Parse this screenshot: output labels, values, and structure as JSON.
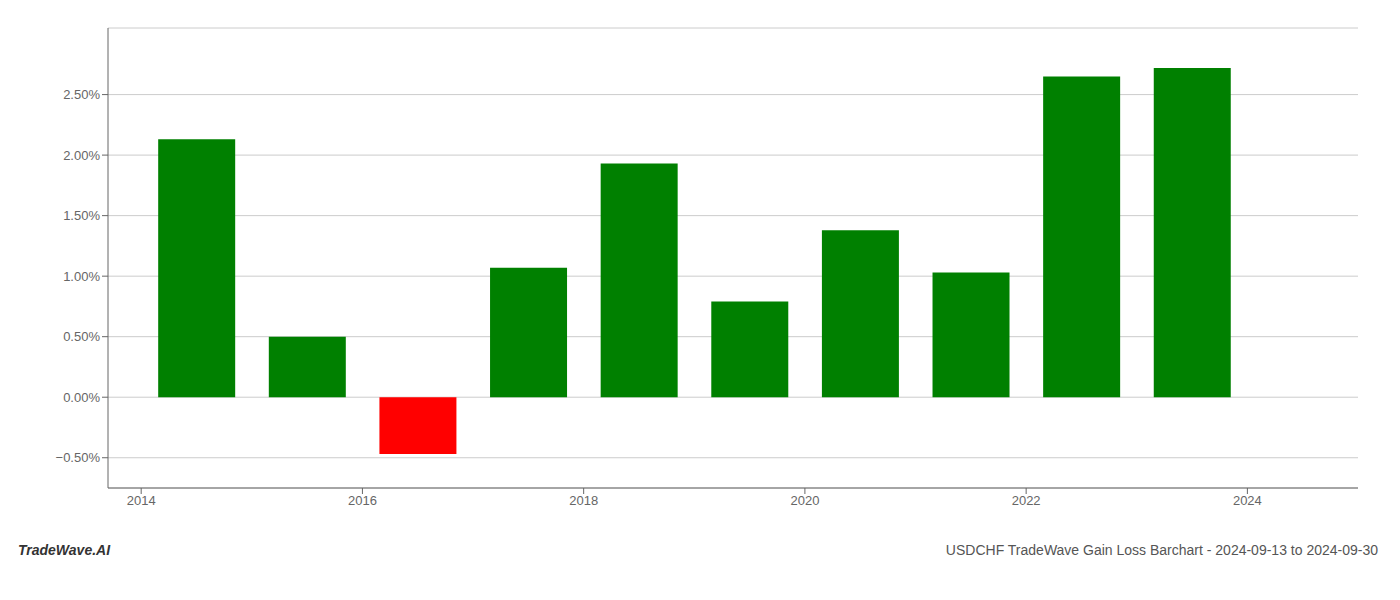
{
  "chart_data": {
    "type": "bar",
    "title": "USDCHF TradeWave Gain Loss Barchart - 2024-09-13 to 2024-09-30",
    "annotations": [
      "TradeWave.AI"
    ],
    "x": [
      2014,
      2015,
      2016,
      2017,
      2018,
      2019,
      2020,
      2021,
      2022,
      2023
    ],
    "values": [
      2.13,
      0.5,
      -0.47,
      1.07,
      1.93,
      0.79,
      1.38,
      1.03,
      2.65,
      2.72
    ],
    "colors": [
      "#008000",
      "#008000",
      "#ff0000",
      "#008000",
      "#008000",
      "#008000",
      "#008000",
      "#008000",
      "#008000",
      "#008000"
    ],
    "xlim": [
      2013.2,
      2024.5
    ],
    "xticks": [
      {
        "value": 2013.5,
        "label": "2014"
      },
      {
        "value": 2015.5,
        "label": "2016"
      },
      {
        "value": 2017.5,
        "label": "2018"
      },
      {
        "value": 2019.5,
        "label": "2020"
      },
      {
        "value": 2021.5,
        "label": "2022"
      },
      {
        "value": 2023.5,
        "label": "2024"
      }
    ],
    "ylim": [
      -0.75,
      3.05
    ],
    "yticks": [
      {
        "value": -0.5,
        "label": "−0.50%"
      },
      {
        "value": 0.0,
        "label": "0.00%"
      },
      {
        "value": 0.5,
        "label": "0.50%"
      },
      {
        "value": 1.0,
        "label": "1.00%"
      },
      {
        "value": 1.5,
        "label": "1.50%"
      },
      {
        "value": 2.0,
        "label": "2.00%"
      },
      {
        "value": 2.5,
        "label": "2.50%"
      }
    ],
    "grid": true
  }
}
